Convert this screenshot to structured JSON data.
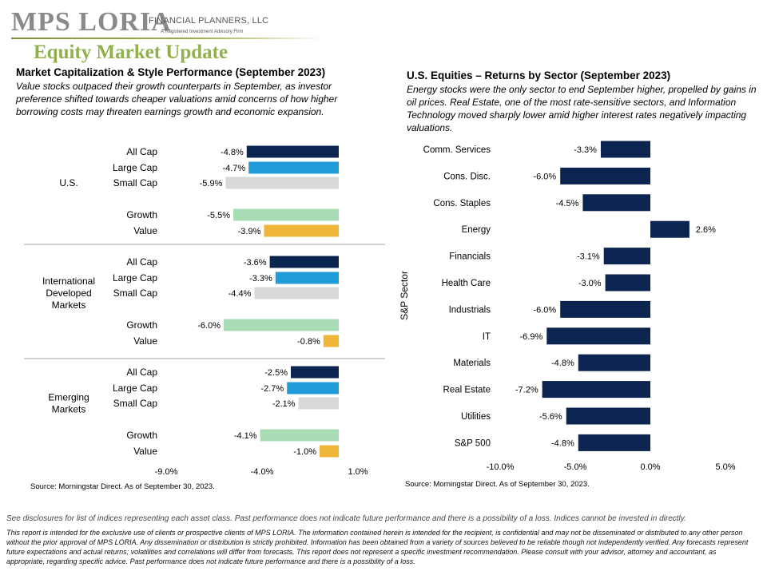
{
  "header": {
    "logo_text": "MPS LORIA",
    "logo_subtitle": "FINANCIAL PLANNERS, LLC",
    "logo_tagline": "A Registered Investment Advisory Firm",
    "page_title": "Equity Market Update"
  },
  "left_panel": {
    "title": "Market Capitalization & Style Performance (September 2023)",
    "description": "Value stocks outpaced their growth  counterparts in September, as investor preference  shifted towards  cheaper valuations  amid concerns of how higher borrowing  costs may threaten  earnings growth  and economic expansion.",
    "source": "Source:  Morningstar Direct. As of September 30, 2023."
  },
  "right_panel": {
    "title": "U.S. Equities – Returns by Sector (September 2023)",
    "description": "Energy  stocks were the only  sector to end September higher,  propelled by gains in oil prices. Real Estate, one of the most rate-sensitive sectors, and Information Technology moved sharply lower amid higher interest rates negatively impacting valuations.",
    "source": "Source: Morningstar Direct. As of September 30, 2023."
  },
  "footer": {
    "disclosure": "See disclosures for list of indices representing each asset class. Past performance does not indicate future performance and there is a possibility of a loss. Indices cannot be invested in directly.",
    "legal": "This report is intended for the exclusive use of clients or prospective clients of MPS LORIA. The information contained herein is intended for the recipient, is confidential and may not be disseminated or distributed to any other person without the prior approval of MPS LORIA. Any dissemination or distribution is strictly prohibited. Information has been obtained from a variety of sources believed to be reliable though not independently verified. Any forecasts represent future expectations and actual returns; volatilities and correlations will differ from forecasts. This report does not represent a specific investment recommendation. Please consult with your advisor, attorney and accountant, as appropriate, regarding specific advice. Past performance does not indicate future performance and there is a possibility of a loss."
  },
  "colors": {
    "all_cap": "#0b2550",
    "large_cap": "#1f9bd7",
    "small_cap": "#d9d9d9",
    "growth": "#a8dcb5",
    "value": "#f0b63b",
    "sector": "#0b2550",
    "title_green": "#8fb04a"
  },
  "chart_data": [
    {
      "type": "bar",
      "orientation": "horizontal",
      "title": "",
      "xlim": [
        -9.0,
        1.0
      ],
      "x_ticks": [
        "-9.0%",
        "-4.0%",
        "1.0%"
      ],
      "groups": [
        {
          "name": "U.S.",
          "bars": [
            {
              "label": "All Cap",
              "value": -4.8,
              "value_label": "-4.8%",
              "color_key": "all_cap"
            },
            {
              "label": "Large Cap",
              "value": -4.7,
              "value_label": "-4.7%",
              "color_key": "large_cap"
            },
            {
              "label": "Small Cap",
              "value": -5.9,
              "value_label": "-5.9%",
              "color_key": "small_cap"
            },
            {
              "label": "Growth",
              "value": -5.5,
              "value_label": "-5.5%",
              "color_key": "growth"
            },
            {
              "label": "Value",
              "value": -3.9,
              "value_label": "-3.9%",
              "color_key": "value"
            }
          ]
        },
        {
          "name": "International Developed Markets",
          "name_lines": [
            "International",
            "Developed",
            "Markets"
          ],
          "bars": [
            {
              "label": "All Cap",
              "value": -3.6,
              "value_label": "-3.6%",
              "color_key": "all_cap"
            },
            {
              "label": "Large Cap",
              "value": -3.3,
              "value_label": "-3.3%",
              "color_key": "large_cap"
            },
            {
              "label": "Small Cap",
              "value": -4.4,
              "value_label": "-4.4%",
              "color_key": "small_cap"
            },
            {
              "label": "Growth",
              "value": -6.0,
              "value_label": "-6.0%",
              "color_key": "growth"
            },
            {
              "label": "Value",
              "value": -0.8,
              "value_label": "-0.8%",
              "color_key": "value"
            }
          ]
        },
        {
          "name": "Emerging Markets",
          "name_lines": [
            "Emerging",
            "Markets"
          ],
          "bars": [
            {
              "label": "All Cap",
              "value": -2.5,
              "value_label": "-2.5%",
              "color_key": "all_cap"
            },
            {
              "label": "Large Cap",
              "value": -2.7,
              "value_label": "-2.7%",
              "color_key": "large_cap"
            },
            {
              "label": "Small Cap",
              "value": -2.1,
              "value_label": "-2.1%",
              "color_key": "small_cap"
            },
            {
              "label": "Growth",
              "value": -4.1,
              "value_label": "-4.1%",
              "color_key": "growth"
            },
            {
              "label": "Value",
              "value": -1.0,
              "value_label": "-1.0%",
              "color_key": "value"
            }
          ]
        }
      ]
    },
    {
      "type": "bar",
      "orientation": "horizontal",
      "title": "",
      "ylabel": "S&P Sector",
      "xlim": [
        -10.0,
        5.0
      ],
      "x_ticks": [
        "-10.0%",
        "-5.0%",
        "0.0%",
        "5.0%"
      ],
      "categories": [
        "Comm. Services",
        "Cons. Disc.",
        "Cons. Staples",
        "Energy",
        "Financials",
        "Health Care",
        "Industrials",
        "IT",
        "Materials",
        "Real Estate",
        "Utilities",
        "S&P 500"
      ],
      "values": [
        -3.3,
        -6.0,
        -4.5,
        2.6,
        -3.1,
        -3.0,
        -6.0,
        -6.9,
        -4.8,
        -7.2,
        -5.6,
        -4.8
      ],
      "value_labels": [
        "-3.3%",
        "-6.0%",
        "-4.5%",
        "2.6%",
        "-3.1%",
        "-3.0%",
        "-6.0%",
        "-6.9%",
        "-4.8%",
        "-7.2%",
        "-5.6%",
        "-4.8%"
      ]
    }
  ]
}
